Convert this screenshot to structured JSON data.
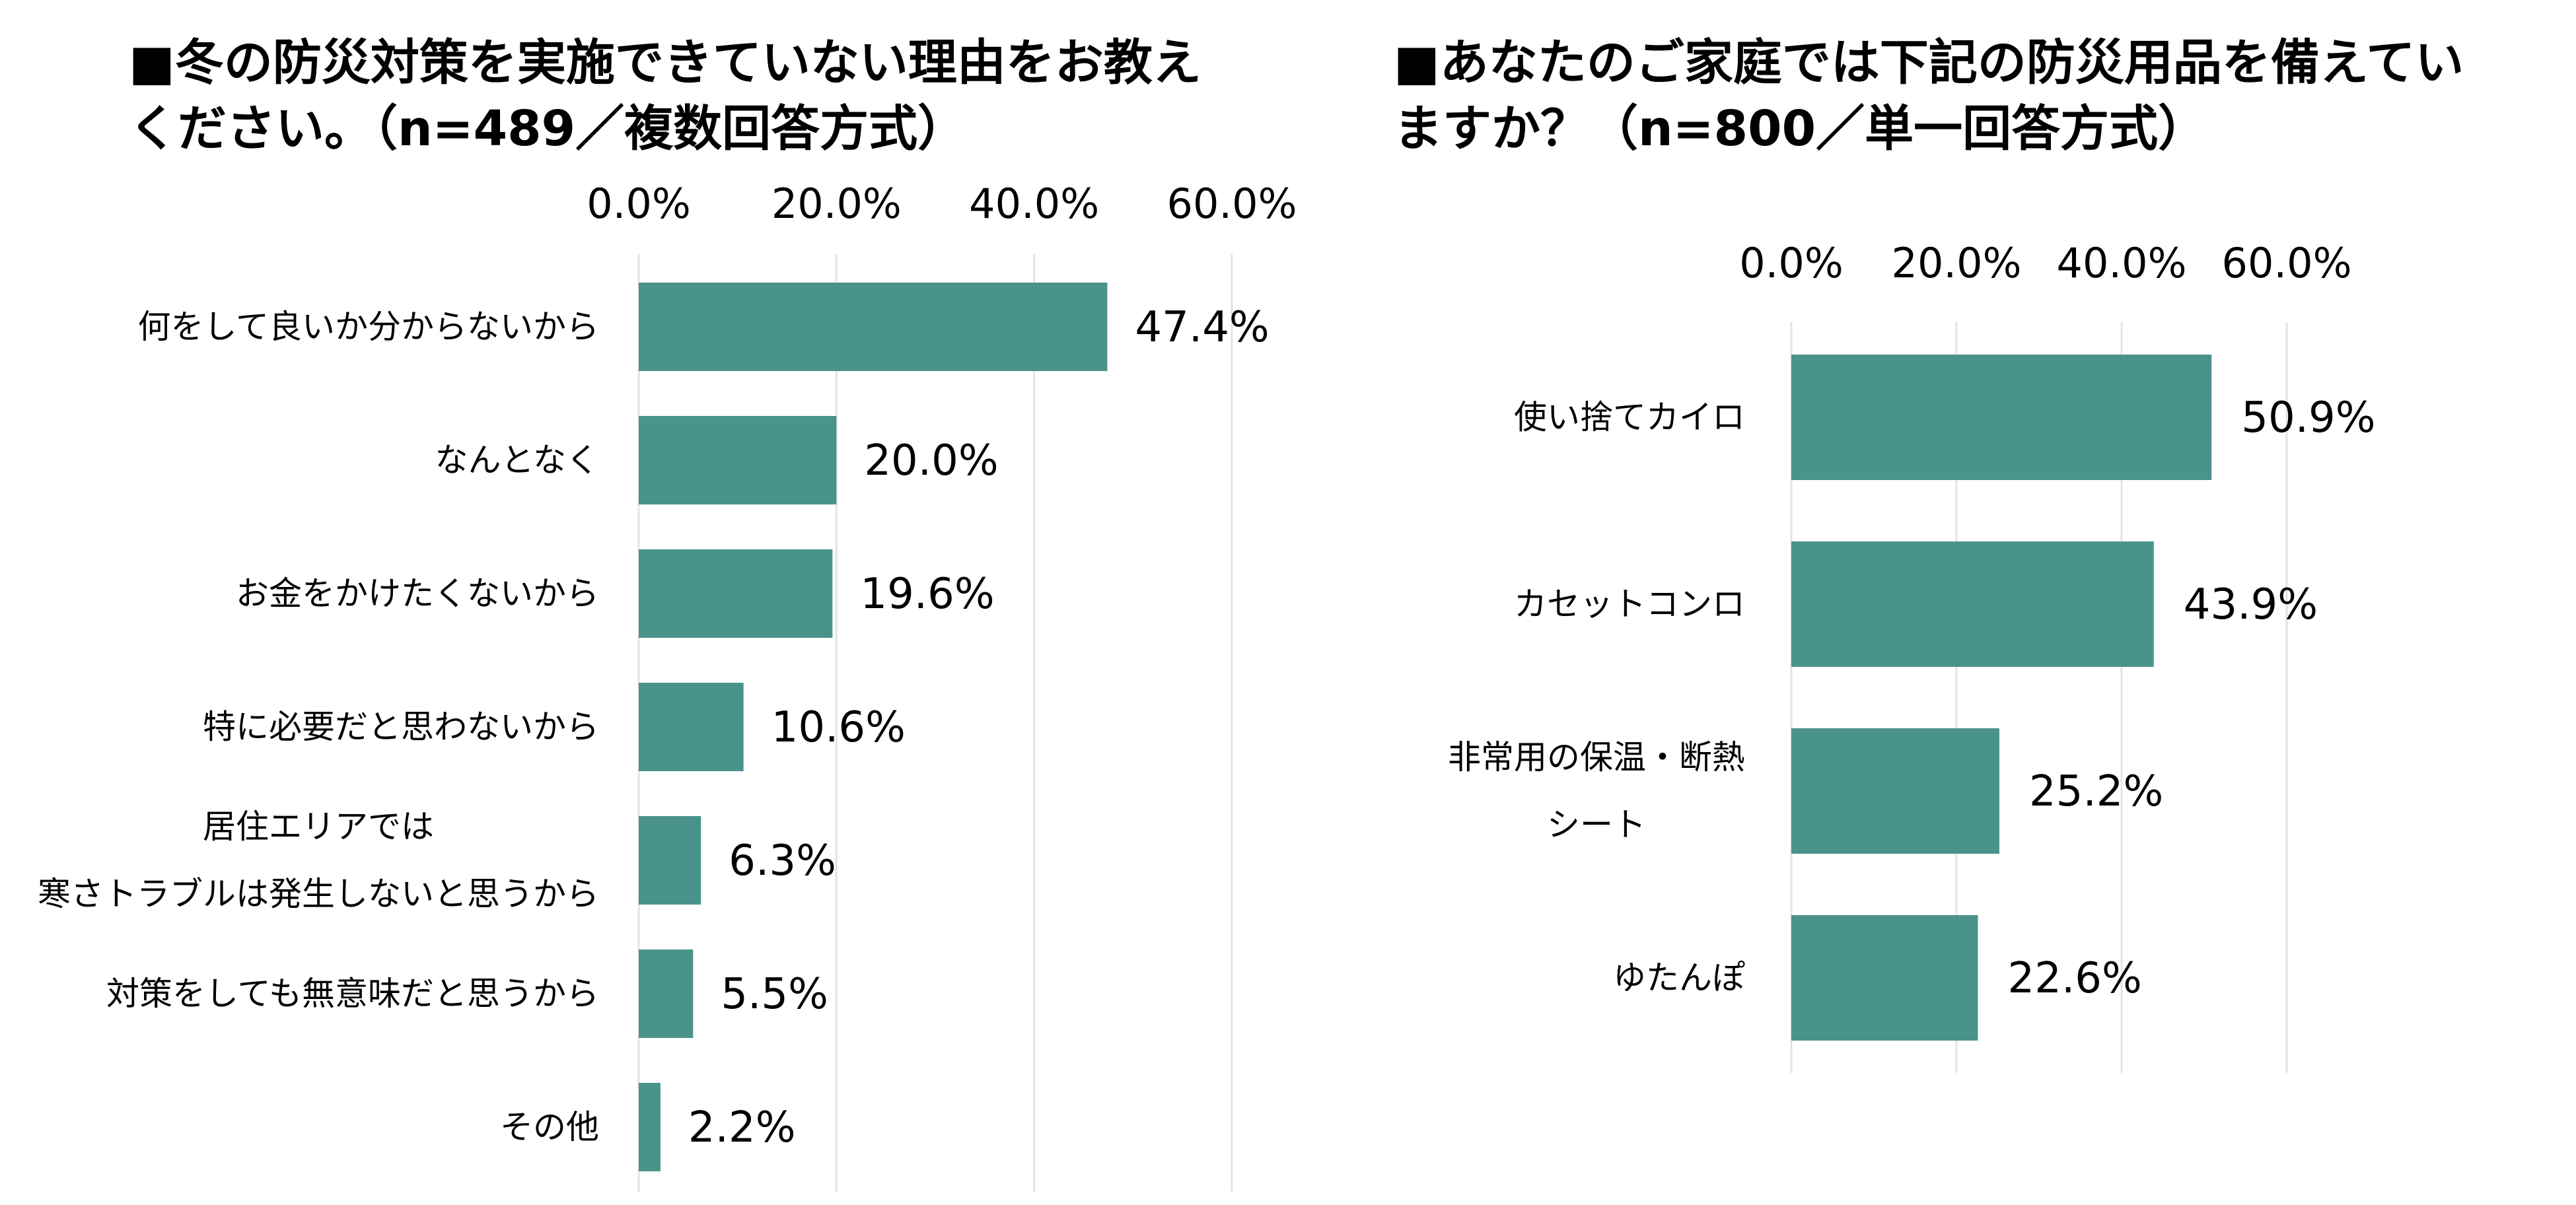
{
  "colors": {
    "bar": "#4a938b",
    "grid": "#e3e3e3"
  },
  "chart_data": [
    {
      "type": "bar",
      "orientation": "horizontal",
      "title_lines": [
        "■冬の防災対策を実施できていない理由をお教え",
        "ください。（n=489／複数回答方式）"
      ],
      "categories": [
        [
          "何をして良いか分からないから"
        ],
        [
          "なんとなく"
        ],
        [
          "お金をかけたくないから"
        ],
        [
          "特に必要だと思わないから"
        ],
        [
          "居住エリアでは",
          "寒さトラブルは発生しないと思うから"
        ],
        [
          "対策をしても無意味だと思うから"
        ],
        [
          "その他"
        ]
      ],
      "values": [
        47.4,
        20.0,
        19.6,
        10.6,
        6.3,
        5.5,
        2.2
      ],
      "value_labels": [
        "47.4%",
        "20.0%",
        "19.6%",
        "10.6%",
        "6.3%",
        "5.5%",
        "2.2%"
      ],
      "xlim": [
        0,
        60
      ],
      "xticks": [
        "0.0%",
        "20.0%",
        "40.0%",
        "60.0%"
      ],
      "tick_position": "top",
      "grid": true
    },
    {
      "type": "bar",
      "orientation": "horizontal",
      "title_lines": [
        "■あなたのご家庭では下記の防災用品を備えてい",
        "ますか？（n=800／単一回答方式）"
      ],
      "categories": [
        [
          "使い捨てカイロ"
        ],
        [
          "カセットコンロ"
        ],
        [
          "非常用の保温・断熱",
          "シート"
        ],
        [
          "ゆたんぽ"
        ]
      ],
      "values": [
        50.9,
        43.9,
        25.2,
        22.6
      ],
      "value_labels": [
        "50.9%",
        "43.9%",
        "25.2%",
        "22.6%"
      ],
      "xlim": [
        0,
        60
      ],
      "xticks": [
        "0.0%",
        "20.0%",
        "40.0%",
        "60.0%"
      ],
      "tick_position": "top",
      "grid": true
    }
  ]
}
